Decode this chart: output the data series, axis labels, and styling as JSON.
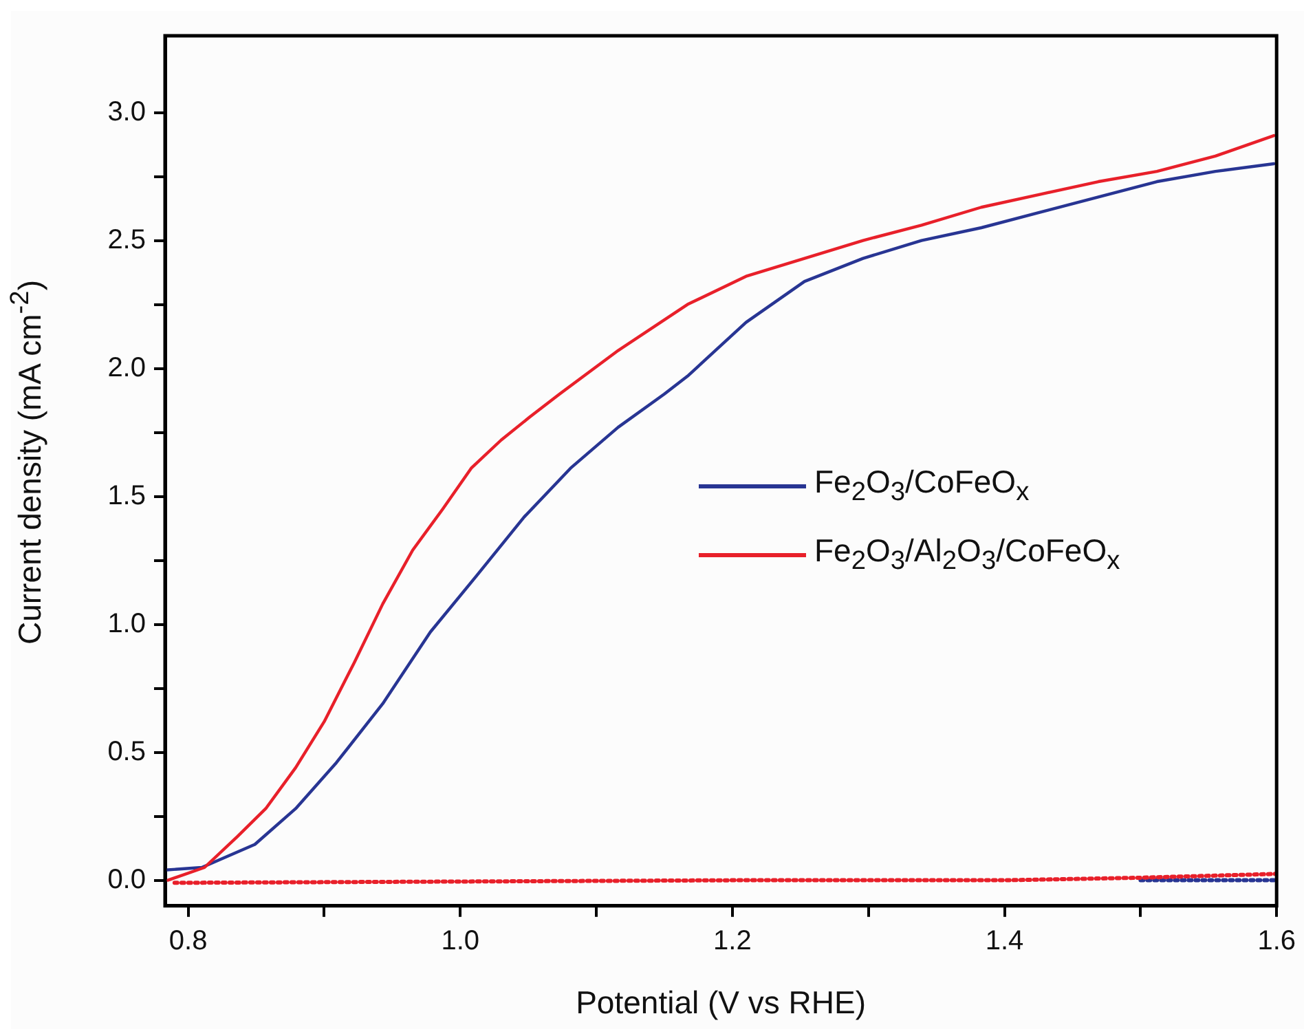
{
  "chart_data": {
    "type": "line",
    "xlabel": "Potential (V vs RHE)",
    "ylabel": "Current density (mA cm$^{-2}$)",
    "xlim": [
      0.783,
      1.6
    ],
    "ylim": [
      -0.1,
      3.3
    ],
    "xticks": [
      {
        "value": 0.8,
        "label": "0.8"
      },
      {
        "value": 0.9,
        "label": null
      },
      {
        "value": 1.0,
        "label": "1.0"
      },
      {
        "value": 1.1,
        "label": null
      },
      {
        "value": 1.2,
        "label": "1.2"
      },
      {
        "value": 1.3,
        "label": null
      },
      {
        "value": 1.4,
        "label": "1.4"
      },
      {
        "value": 1.5,
        "label": null
      },
      {
        "value": 1.6,
        "label": "1.6"
      }
    ],
    "yticks": [
      {
        "value": 0,
        "label": "0.0"
      },
      {
        "value": 0.25,
        "label": null
      },
      {
        "value": 0.5,
        "label": "0.5"
      },
      {
        "value": 0.75,
        "label": null
      },
      {
        "value": 1.0,
        "label": "1.0"
      },
      {
        "value": 1.25,
        "label": null
      },
      {
        "value": 1.5,
        "label": "1.5"
      },
      {
        "value": 1.75,
        "label": null
      },
      {
        "value": 2.0,
        "label": "2.0"
      },
      {
        "value": 2.25,
        "label": null
      },
      {
        "value": 2.5,
        "label": "2.5"
      },
      {
        "value": 2.75,
        "label": null
      },
      {
        "value": 3.0,
        "label": "3.0"
      }
    ],
    "grid": false,
    "legend": "right",
    "marker": "none",
    "series": [
      {
        "name": "Fe$_{2}$O$_{3}$/CoFeO$_{x}$",
        "color": "#283593",
        "line_style": "solid",
        "x": [
          0.783,
          0.81,
          0.849,
          0.879,
          0.909,
          0.943,
          0.978,
          1.012,
          1.047,
          1.081,
          1.116,
          1.15,
          1.167,
          1.21,
          1.253,
          1.296,
          1.339,
          1.383,
          1.426,
          1.469,
          1.512,
          1.555,
          1.598
        ],
        "values": [
          0.04,
          0.05,
          0.14,
          0.28,
          0.46,
          0.69,
          0.97,
          1.19,
          1.42,
          1.61,
          1.77,
          1.9,
          1.97,
          2.18,
          2.34,
          2.43,
          2.5,
          2.55,
          2.61,
          2.67,
          2.73,
          2.77,
          2.8
        ]
      },
      {
        "name": "Fe$_{2}$O$_{3}$/Al$_{2}$O$_{3}$/CoFeO$_{x}$",
        "color": "#e8202a",
        "line_style": "solid",
        "x": [
          0.785,
          0.812,
          0.836,
          0.857,
          0.879,
          0.9,
          0.922,
          0.943,
          0.965,
          0.987,
          1.008,
          1.03,
          1.051,
          1.073,
          1.116,
          1.167,
          1.21,
          1.253,
          1.296,
          1.339,
          1.383,
          1.426,
          1.469,
          1.512,
          1.555,
          1.598
        ],
        "values": [
          0.0,
          0.05,
          0.17,
          0.28,
          0.44,
          0.62,
          0.85,
          1.08,
          1.29,
          1.45,
          1.61,
          1.72,
          1.81,
          1.9,
          2.07,
          2.25,
          2.36,
          2.43,
          2.5,
          2.56,
          2.63,
          2.68,
          2.73,
          2.77,
          2.83,
          2.91
        ]
      },
      {
        "color": "#283593",
        "line_style": "dotted",
        "x": [
          1.5,
          1.6
        ],
        "values": [
          0.0,
          0.0
        ]
      },
      {
        "color": "#e8202a",
        "line_style": "dotted",
        "x": [
          0.79,
          1.0,
          1.2,
          1.4,
          1.5,
          1.6
        ],
        "values": [
          -0.01,
          -0.005,
          0.0,
          0.0,
          0.01,
          0.025
        ]
      }
    ]
  }
}
